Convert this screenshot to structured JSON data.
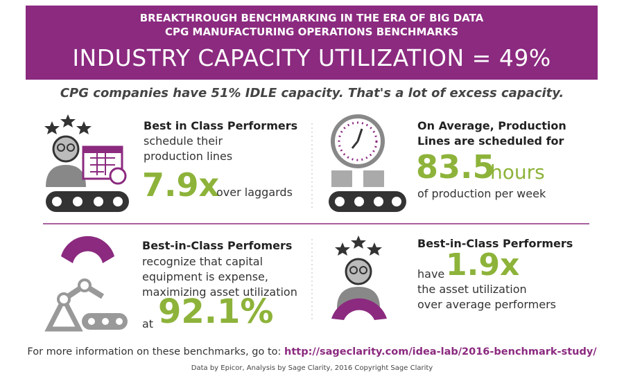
{
  "header": {
    "line1": "BREAKTHROUGH BENCHMARKING IN THE ERA OF BIG DATA",
    "line2": "CPG MANUFACTURING OPERATIONS BENCHMARKS",
    "headline": "INDUSTRY CAPACITY UTILIZATION = 49%"
  },
  "subtitle": "CPG companies have 51% IDLE capacity. That's a lot of excess capacity.",
  "panels": [
    {
      "heading": "Best in Class Performers",
      "lines": [
        "schedule their",
        "production lines"
      ],
      "stat": "7.9x",
      "after": "over laggards"
    },
    {
      "heading": [
        "On Average, Production",
        "Lines are scheduled for"
      ],
      "stat": "83.5",
      "unit": "hours",
      "after": "of production per week"
    },
    {
      "heading": "Best-in-Class Perfomers",
      "lines": [
        "recognize that capital",
        "equipment is expense,",
        "maximizing asset utilization"
      ],
      "before": "at",
      "stat": "92.1%"
    },
    {
      "heading": "Best-in-Class Performers",
      "before": "have",
      "stat": "1.9x",
      "lines": [
        "the asset utilization",
        "over average performers"
      ]
    }
  ],
  "footer": {
    "prefix": "For more information on these benchmarks, go to:",
    "link": "http://sageclarity.com/idea-lab/2016-benchmark-study/",
    "credit": "Data by Epicor, Analysis by Sage Clarity, 2016 Copyright Sage Clarity"
  }
}
